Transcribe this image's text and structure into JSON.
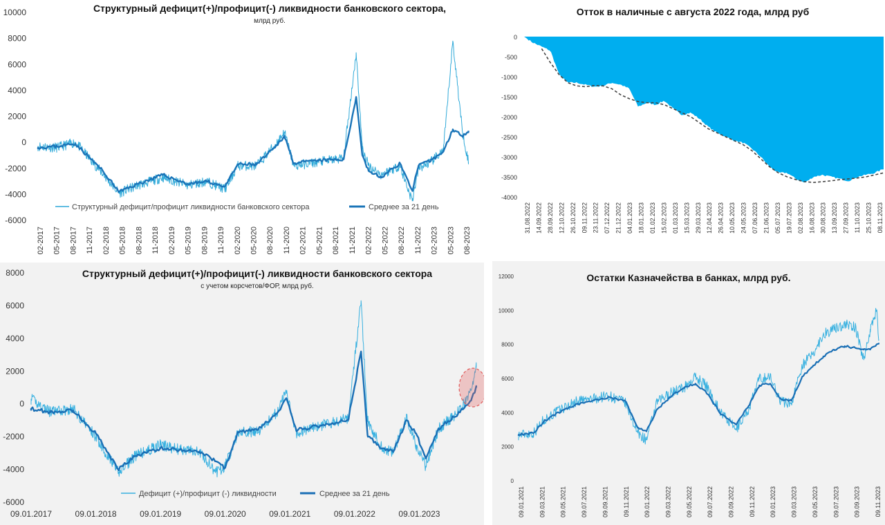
{
  "chart_data": [
    {
      "id": "chart1",
      "type": "line",
      "title": "Структурный дефицит(+)/профицит(-) ликвидности банковского сектора,",
      "subtitle": "млрд руб.",
      "xlabel": "",
      "ylabel": "",
      "ylim": [
        -6000,
        10000
      ],
      "yticks": [
        "10000",
        "8000",
        "6000",
        "4000",
        "2000",
        "0",
        "-2000",
        "-4000",
        "-6000"
      ],
      "xticks": [
        "02-2017",
        "05-2017",
        "08-2017",
        "11-2017",
        "02-2018",
        "05-2018",
        "08-2018",
        "11-2018",
        "02-2019",
        "05-2019",
        "08-2019",
        "11-2019",
        "02-2020",
        "05-2020",
        "08-2020",
        "11-2020",
        "02-2021",
        "05-2021",
        "08-2021",
        "11-2021",
        "02-2022",
        "05-2022",
        "08-2022",
        "11-2022",
        "02-2023",
        "05-2023",
        "08-2023"
      ],
      "grid": false,
      "legend_position": "bottom",
      "colors": {
        "daily": "#2fa9d8",
        "avg": "#1a74b8"
      },
      "series": [
        {
          "name": "Структурный дефицит/профицит ликвидности банковского сектора",
          "style": "thin",
          "x": [
            2017.0,
            2017.3,
            2017.6,
            2018.0,
            2018.3,
            2018.6,
            2019.0,
            2019.4,
            2019.7,
            2020.0,
            2020.2,
            2020.5,
            2020.8,
            2020.95,
            2021.1,
            2021.5,
            2021.9,
            2022.1,
            2022.2,
            2022.3,
            2022.5,
            2022.8,
            2023.0,
            2023.1,
            2023.3,
            2023.5,
            2023.65,
            2023.8,
            2023.9
          ],
          "values": [
            -300,
            -400,
            0,
            -2200,
            -3900,
            -3300,
            -2700,
            -3300,
            -3000,
            -3600,
            -1800,
            -1800,
            -200,
            800,
            -1800,
            -1500,
            -1200,
            6900,
            -500,
            -1800,
            -2500,
            -1800,
            -4500,
            -2000,
            -1500,
            -600,
            7800,
            1000,
            -1500
          ]
        },
        {
          "name": "Среднее за 21 день",
          "style": "thick",
          "x": [
            2017.0,
            2017.3,
            2017.6,
            2018.0,
            2018.3,
            2018.6,
            2019.0,
            2019.4,
            2019.7,
            2020.0,
            2020.2,
            2020.5,
            2020.8,
            2020.95,
            2021.1,
            2021.5,
            2021.9,
            2022.1,
            2022.2,
            2022.3,
            2022.5,
            2022.8,
            2023.0,
            2023.1,
            2023.3,
            2023.5,
            2023.65,
            2023.8,
            2023.9
          ],
          "values": [
            -400,
            -300,
            -100,
            -2000,
            -3800,
            -3200,
            -2500,
            -3200,
            -3000,
            -3400,
            -1700,
            -1700,
            -400,
            500,
            -1600,
            -1400,
            -1300,
            3500,
            -1000,
            -2200,
            -2700,
            -1600,
            -3700,
            -1800,
            -1400,
            -700,
            1000,
            500,
            900
          ]
        }
      ]
    },
    {
      "id": "chart2",
      "type": "area",
      "title": "Отток в наличные с августа 2022 года, млрд руб",
      "xlabel": "",
      "ylabel": "",
      "ylim": [
        -4000,
        0
      ],
      "yticks": [
        "0",
        "-500",
        "-1000",
        "-1500",
        "-2000",
        "-2500",
        "-3000",
        "-3500",
        "-4000"
      ],
      "xticks": [
        "31.08.2022",
        "14.09.2022",
        "28.09.2022",
        "12.10.2022",
        "26.10.2022",
        "09.11.2022",
        "23.11.2022",
        "07.12.2022",
        "21.12.2022",
        "04.01.2023",
        "18.01.2023",
        "01.02.2023",
        "15.02.2023",
        "01.03.2023",
        "15.03.2023",
        "29.03.2023",
        "12.04.2023",
        "26.04.2023",
        "10.05.2023",
        "24.05.2023",
        "07.06.2023",
        "21.06.2023",
        "05.07.2023",
        "19.07.2023",
        "02.08.2023",
        "16.08.2023",
        "30.08.2023",
        "13.09.2023",
        "27.09.2023",
        "11.10.2023",
        "25.10.2023",
        "08.11.2023"
      ],
      "grid": false,
      "colors": {
        "area": "#00aeef",
        "trend": "#444444"
      },
      "series": [
        {
          "name": "",
          "style": "area",
          "values": [
            0,
            -150,
            -250,
            -350,
            -950,
            -1150,
            -1150,
            -1200,
            -1250,
            -1230,
            -1150,
            -1200,
            -1300,
            -1750,
            -1650,
            -1700,
            -1600,
            -1800,
            -1950,
            -1900,
            -2050,
            -2250,
            -2400,
            -2500,
            -2600,
            -2650,
            -2800,
            -3000,
            -3250,
            -3400,
            -3400,
            -3550,
            -3650,
            -3500,
            -3450,
            -3500,
            -3550,
            -3600,
            -3500,
            -3450,
            -3400,
            -3300
          ]
        },
        {
          "name": "",
          "style": "dashed",
          "values": [
            null,
            null,
            -300,
            -650,
            -950,
            -1150,
            -1230,
            -1250,
            -1220,
            -1230,
            -1300,
            -1450,
            -1550,
            -1620,
            -1650,
            -1650,
            -1700,
            -1800,
            -1900,
            -2000,
            -2150,
            -2300,
            -2400,
            -2500,
            -2600,
            -2700,
            -2850,
            -3050,
            -3250,
            -3400,
            -3500,
            -3570,
            -3620,
            -3640,
            -3620,
            -3600,
            -3570,
            -3550,
            -3530,
            -3500,
            -3450,
            -3400
          ]
        }
      ]
    },
    {
      "id": "chart3",
      "type": "line",
      "title": "Структурный дефицит(+)/профицит(-) ликвидности банковского сектора",
      "subtitle": "с учетом корсчетов/ФОР, млрд руб.",
      "xlabel": "",
      "ylabel": "",
      "ylim": [
        -6000,
        8000
      ],
      "yticks": [
        "8000",
        "6000",
        "4000",
        "2000",
        "0",
        "-2000",
        "-4000",
        "-6000"
      ],
      "xticks": [
        "09.01.2017",
        "09.01.2018",
        "09.01.2019",
        "09.01.2020",
        "09.01.2021",
        "09.01.2022",
        "09.01.2023"
      ],
      "grid": false,
      "legend_position": "bottom",
      "colors": {
        "daily": "#36b0e0",
        "avg": "#1a6fb5",
        "highlight": "#e05a5a"
      },
      "series": [
        {
          "name": "Дефицит (+)/профицит (-) ликвидности",
          "style": "thin",
          "x": [
            2017.0,
            2017.3,
            2017.65,
            2018.0,
            2018.35,
            2018.6,
            2019.0,
            2019.3,
            2019.6,
            2019.85,
            2020.0,
            2020.2,
            2020.5,
            2020.8,
            2020.95,
            2021.1,
            2021.5,
            2021.9,
            2022.1,
            2022.2,
            2022.4,
            2022.6,
            2022.8,
            2022.95,
            2023.1,
            2023.3,
            2023.6,
            2023.8,
            2023.88
          ],
          "values": [
            300,
            -500,
            -300,
            -2000,
            -4200,
            -3200,
            -2500,
            -2800,
            -2900,
            -4200,
            -3800,
            -1700,
            -1700,
            -500,
            800,
            -1800,
            -1300,
            -900,
            6300,
            -1000,
            -2600,
            -3000,
            -800,
            -2500,
            -3800,
            -1500,
            -500,
            800,
            2200
          ]
        },
        {
          "name": "Среднее за 21 день",
          "style": "thick",
          "x": [
            2017.0,
            2017.3,
            2017.65,
            2018.0,
            2018.35,
            2018.6,
            2019.0,
            2019.3,
            2019.6,
            2019.85,
            2020.0,
            2020.2,
            2020.5,
            2020.8,
            2020.95,
            2021.1,
            2021.5,
            2021.9,
            2022.1,
            2022.2,
            2022.4,
            2022.6,
            2022.8,
            2022.95,
            2023.1,
            2023.3,
            2023.6,
            2023.8,
            2023.88
          ],
          "values": [
            -300,
            -500,
            -400,
            -1800,
            -4000,
            -3200,
            -2700,
            -2800,
            -2900,
            -3500,
            -3900,
            -1700,
            -1600,
            -600,
            300,
            -1600,
            -1300,
            -1000,
            3200,
            -1900,
            -2700,
            -2900,
            -1000,
            -1800,
            -3300,
            -1500,
            -600,
            200,
            1000
          ]
        }
      ]
    },
    {
      "id": "chart4",
      "type": "line",
      "title": "Остатки Казначейства в банках, млрд руб.",
      "xlabel": "",
      "ylabel": "",
      "ylim": [
        0,
        12000
      ],
      "yticks": [
        "12000",
        "10000",
        "8000",
        "6000",
        "4000",
        "2000",
        "0"
      ],
      "xticks": [
        "09.01.2021",
        "09.03.2021",
        "09.05.2021",
        "09.07.2021",
        "09.09.2021",
        "09.11.2021",
        "09.01.2022",
        "09.03.2022",
        "09.05.2022",
        "09.07.2022",
        "09.09.2022",
        "09.11.2022",
        "09.01.2023",
        "09.03.2023",
        "09.05.2023",
        "09.07.2023",
        "09.09.2023",
        "09.11.2023"
      ],
      "grid": false,
      "colors": {
        "daily": "#36b0e0",
        "avg": "#1a6fb5"
      },
      "series": [
        {
          "name": "",
          "style": "thin",
          "x": [
            0,
            0.7,
            1.2,
            2.0,
            2.8,
            3.5,
            4.2,
            5.0,
            5.6,
            6.0,
            6.5,
            7.2,
            7.8,
            8.3,
            8.8,
            9.5,
            10.2,
            10.8,
            11.3,
            11.8,
            12.3,
            12.8,
            13.3,
            13.8,
            14.3,
            14.8,
            15.3,
            15.8,
            16.2,
            16.5,
            16.8,
            16.9
          ],
          "values": [
            2700,
            2800,
            3600,
            4200,
            4700,
            4800,
            5000,
            4600,
            2800,
            2400,
            4600,
            5200,
            5500,
            6100,
            5600,
            4000,
            3000,
            4200,
            6000,
            6100,
            4700,
            4500,
            6800,
            7400,
            8600,
            8900,
            9200,
            9000,
            7100,
            8900,
            10000,
            8300
          ]
        },
        {
          "name": "",
          "style": "thick",
          "x": [
            0,
            0.7,
            1.2,
            2.0,
            2.8,
            3.5,
            4.2,
            5.0,
            5.6,
            6.0,
            6.5,
            7.2,
            7.8,
            8.3,
            8.8,
            9.5,
            10.2,
            10.8,
            11.3,
            11.8,
            12.3,
            12.8,
            13.3,
            13.8,
            14.3,
            14.8,
            15.3,
            15.8,
            16.2,
            16.5,
            16.8,
            16.9
          ],
          "values": [
            2700,
            2800,
            3500,
            4100,
            4500,
            4700,
            4900,
            4700,
            3100,
            2900,
            4200,
            5000,
            5500,
            5700,
            5200,
            3900,
            3300,
            4400,
            5600,
            5700,
            4800,
            4700,
            6100,
            6700,
            7300,
            7700,
            7900,
            7800,
            7700,
            7700,
            8000,
            8100
          ]
        }
      ]
    }
  ]
}
